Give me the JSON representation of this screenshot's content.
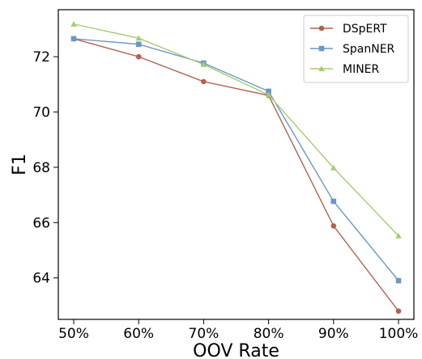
{
  "chart_data": {
    "type": "line",
    "categories": [
      "50%",
      "60%",
      "70%",
      "80%",
      "90%",
      "100%"
    ],
    "xlabel": "OOV Rate",
    "ylabel": "F1",
    "ylim": [
      62.5,
      73.7
    ],
    "yticks": [
      64,
      66,
      68,
      70,
      72
    ],
    "grid": false,
    "legend": "top-right",
    "series": [
      {
        "name": "DSpERT",
        "color": "#b5604f",
        "marker": "circle",
        "values": [
          72.65,
          72.0,
          71.1,
          70.6,
          65.88,
          62.8
        ]
      },
      {
        "name": "SpanNER",
        "color": "#6b97c6",
        "marker": "square",
        "values": [
          72.65,
          72.45,
          71.77,
          70.75,
          66.77,
          63.9
        ]
      },
      {
        "name": "MINER",
        "color": "#a5cd72",
        "marker": "triangle",
        "values": [
          73.18,
          72.67,
          71.72,
          70.62,
          67.98,
          65.52
        ]
      }
    ]
  }
}
